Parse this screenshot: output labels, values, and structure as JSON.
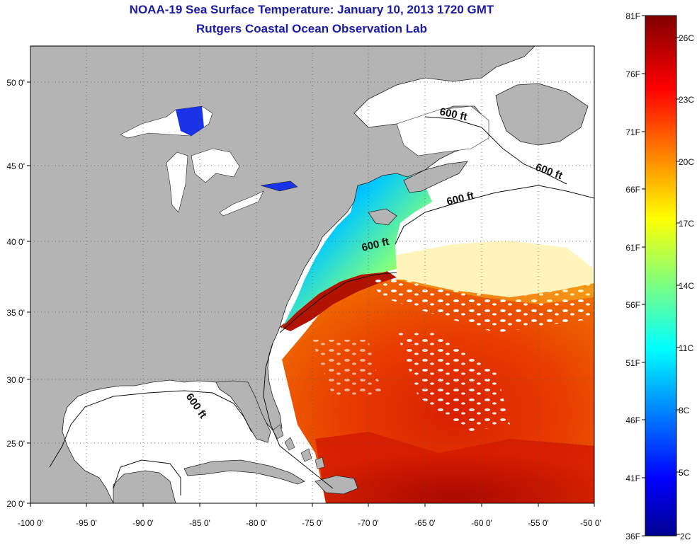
{
  "title": "NOAA-19 Sea Surface Temperature:  January 10, 2013 1720 GMT",
  "subtitle": "Rutgers Coastal Ocean Observation Lab",
  "axes": {
    "x_ticks": [
      "-100 0'",
      "-95 0'",
      "-90 0'",
      "-85 0'",
      "-80 0'",
      "-75 0'",
      "-70 0'",
      "-65 0'",
      "-60 0'",
      "-55 0'",
      "-50 0'"
    ],
    "y_ticks": [
      "20 0'",
      "25 0'",
      "30 0'",
      "35 0'",
      "40 0'",
      "45 0'",
      "50 0'"
    ],
    "x_range": [
      -100,
      -50
    ],
    "y_range": [
      20,
      52.5
    ],
    "grid": "dotted"
  },
  "contour_labels": [
    "600 ft",
    "600 ft",
    "600 ft",
    "600 ft",
    "600 ft"
  ],
  "colorbar": {
    "top_label": "81F",
    "bottom_label": "36F",
    "bottom_c": "2C",
    "fahrenheit_ticks": [
      "76F",
      "71F",
      "66F",
      "61F",
      "56F",
      "51F",
      "46F",
      "41F"
    ],
    "celsius_ticks": [
      "26C",
      "23C",
      "20C",
      "17C",
      "14C",
      "11C",
      "8C",
      "5C"
    ],
    "colormap": "jet"
  },
  "colors": {
    "land": "#b4b4b4",
    "no_data": "#ffffff",
    "title": "#1a1aa6"
  }
}
